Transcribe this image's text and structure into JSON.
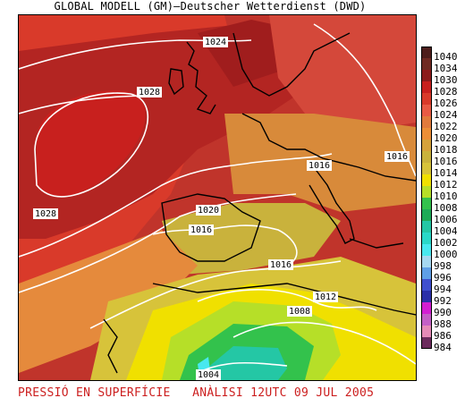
{
  "header": {
    "title": "GLOBAL MODELL (GM)—Deutscher Wetterdienst (DWD)"
  },
  "map": {
    "isobar_labels": [
      "1024",
      "1028",
      "1028",
      "1020",
      "1016",
      "1016",
      "1016",
      "1016",
      "1012",
      "1008",
      "1004"
    ]
  },
  "legend": {
    "entries": [
      {
        "label": "1040",
        "color": "#4d1d1b"
      },
      {
        "label": "1034",
        "color": "#6f2a22"
      },
      {
        "label": "1030",
        "color": "#8c1b1b"
      },
      {
        "label": "1028",
        "color": "#c8201e"
      },
      {
        "label": "1026",
        "color": "#d93a2a"
      },
      {
        "label": "1024",
        "color": "#e85a44"
      },
      {
        "label": "1022",
        "color": "#e17a3c"
      },
      {
        "label": "1020",
        "color": "#ec8e37"
      },
      {
        "label": "1018",
        "color": "#d5a23b"
      },
      {
        "label": "1016",
        "color": "#c9b23c"
      },
      {
        "label": "1014",
        "color": "#d7c33a"
      },
      {
        "label": "1012",
        "color": "#f0e000"
      },
      {
        "label": "1010",
        "color": "#b6df28"
      },
      {
        "label": "1008",
        "color": "#33c24c"
      },
      {
        "label": "1006",
        "color": "#1dab57"
      },
      {
        "label": "1004",
        "color": "#24c7a5"
      },
      {
        "label": "1002",
        "color": "#2ad8c8"
      },
      {
        "label": "1000",
        "color": "#48e8ef"
      },
      {
        "label": "998",
        "color": "#a6d8f0"
      },
      {
        "label": "996",
        "color": "#5f9fe6"
      },
      {
        "label": "994",
        "color": "#3f4fcf"
      },
      {
        "label": "992",
        "color": "#2b2fa8"
      },
      {
        "label": "990",
        "color": "#d21fd2"
      },
      {
        "label": "988",
        "color": "#c35fc6"
      },
      {
        "label": "986",
        "color": "#e58ab7"
      },
      {
        "label": "984",
        "color": "#6b2a5c"
      }
    ]
  },
  "footer": {
    "title": "PRESSIÓ EN SUPERFÍCIE",
    "analysis": "ANÀLISI 12UTC 09 JUL 2005"
  }
}
